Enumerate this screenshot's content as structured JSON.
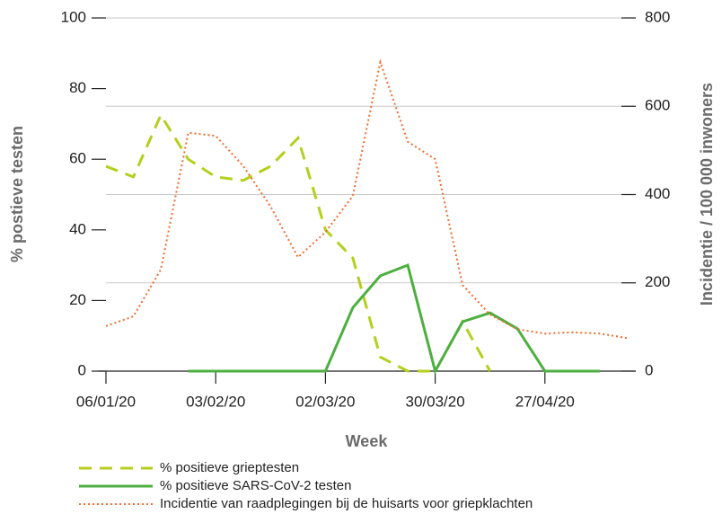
{
  "chart_data": {
    "type": "line",
    "x_label": "Week",
    "y_label": "% postieve testen",
    "y2_label": "Incidentie / 100 000 inwoners",
    "categories": [
      "06/01/20",
      null,
      null,
      null,
      "03/02/20",
      null,
      null,
      null,
      "02/03/20",
      null,
      null,
      null,
      "30/03/20",
      null,
      null,
      null,
      "27/04/20",
      null,
      null,
      null
    ],
    "ylim": [
      0,
      100
    ],
    "yticks": [
      0,
      20,
      40,
      60,
      80,
      100
    ],
    "y2lim": [
      0,
      800
    ],
    "y2ticks": [
      0,
      200,
      400,
      600,
      800
    ],
    "grid": true,
    "legend": "bottom",
    "series": [
      {
        "name": "% positieve grieptesten",
        "color": "#b5cf1c",
        "dash": "dashed",
        "values": [
          58,
          55,
          72.5,
          60,
          55,
          54,
          58,
          66,
          40,
          32,
          4,
          0,
          0,
          14,
          0,
          null,
          null,
          null,
          null,
          null
        ]
      },
      {
        "name": "% positieve SARS-CoV-2 testen",
        "color": "#4caf3f",
        "dash": "solid",
        "values": [
          null,
          null,
          null,
          0,
          0,
          0,
          0,
          0,
          0,
          18,
          27,
          30,
          0,
          14,
          16.5,
          12,
          0,
          0,
          0,
          null
        ]
      },
      {
        "name": "Incidentie van raadplegingen bij de huisarts voor griepklachten",
        "color": "#f26b2e",
        "dash": "dotted",
        "axis": "y2",
        "values": [
          102,
          124,
          230,
          540,
          533,
          465,
          373,
          258,
          315,
          397,
          700,
          520,
          480,
          195,
          128,
          95,
          85,
          88,
          85,
          75
        ]
      }
    ]
  }
}
